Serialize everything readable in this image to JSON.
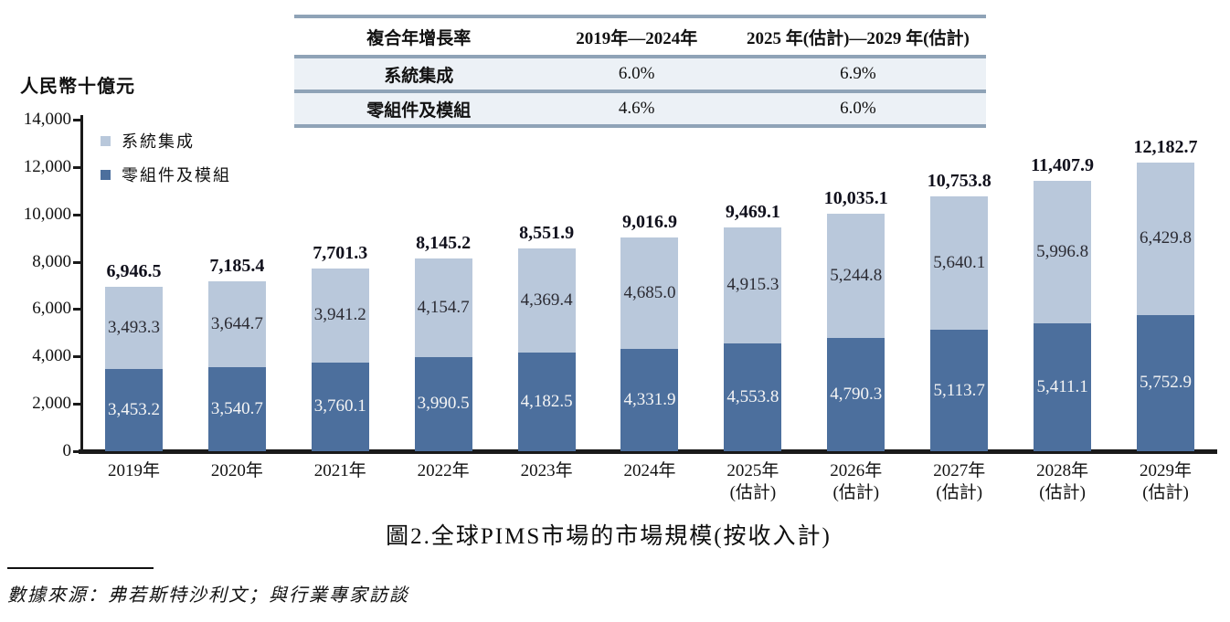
{
  "unit_label": "人民幣十億元",
  "table": {
    "header": [
      "複合年增長率",
      "2019年—2024年",
      "2025 年(估計)—2029 年(估計)"
    ],
    "rows": [
      [
        "系統集成",
        "6.0%",
        "6.9%"
      ],
      [
        "零組件及模組",
        "4.6%",
        "6.0%"
      ]
    ]
  },
  "legend": {
    "items": [
      {
        "label": "系統集成",
        "color": "#b9c8db"
      },
      {
        "label": "零組件及模組",
        "color": "#4c6f9d"
      }
    ]
  },
  "chart_data": {
    "type": "bar",
    "stacked": true,
    "title": "圖2.全球PIMS市場的市場規模(按收入計)",
    "ylabel": "人民幣十億元",
    "ylim": [
      0,
      14000
    ],
    "ytick_step": 2000,
    "yticks": [
      "14,000",
      "12,000",
      "10,000",
      "8,000",
      "6,000",
      "4,000",
      "2,000",
      "0"
    ],
    "grid": false,
    "legend_position": "top-left-inside",
    "categories": [
      {
        "label": "2019年",
        "note": ""
      },
      {
        "label": "2020年",
        "note": ""
      },
      {
        "label": "2021年",
        "note": ""
      },
      {
        "label": "2022年",
        "note": ""
      },
      {
        "label": "2023年",
        "note": ""
      },
      {
        "label": "2024年",
        "note": ""
      },
      {
        "label": "2025年",
        "note": "(估計)"
      },
      {
        "label": "2026年",
        "note": "(估計)"
      },
      {
        "label": "2027年",
        "note": "(估計)"
      },
      {
        "label": "2028年",
        "note": "(估計)"
      },
      {
        "label": "2029年",
        "note": "(估計)"
      }
    ],
    "series": [
      {
        "name": "零組件及模組",
        "color": "#4c6f9d",
        "values": [
          3453.2,
          3540.7,
          3760.1,
          3990.5,
          4182.5,
          4331.9,
          4553.8,
          4790.3,
          5113.7,
          5411.1,
          5752.9
        ]
      },
      {
        "name": "系統集成",
        "color": "#b9c8db",
        "values": [
          3493.3,
          3644.7,
          3941.2,
          4154.7,
          4369.4,
          4685.0,
          4915.3,
          5244.8,
          5640.1,
          5996.8,
          6429.8
        ]
      }
    ],
    "totals": [
      6946.5,
      7185.4,
      7701.3,
      8145.2,
      8551.9,
      9016.9,
      9469.1,
      10035.1,
      10753.8,
      11407.9,
      12182.7
    ]
  },
  "caption": "圖2.全球PIMS市場的市場規模(按收入計)",
  "source": "數據來源：弗若斯特沙利文；與行業專家訪談",
  "colors": {
    "series_dark": "#4c6f9d",
    "series_light": "#b9c8db",
    "table_line": "#8fa3b7",
    "table_row_bg": "#ecf1f6",
    "axis": "#1a1a1a"
  }
}
